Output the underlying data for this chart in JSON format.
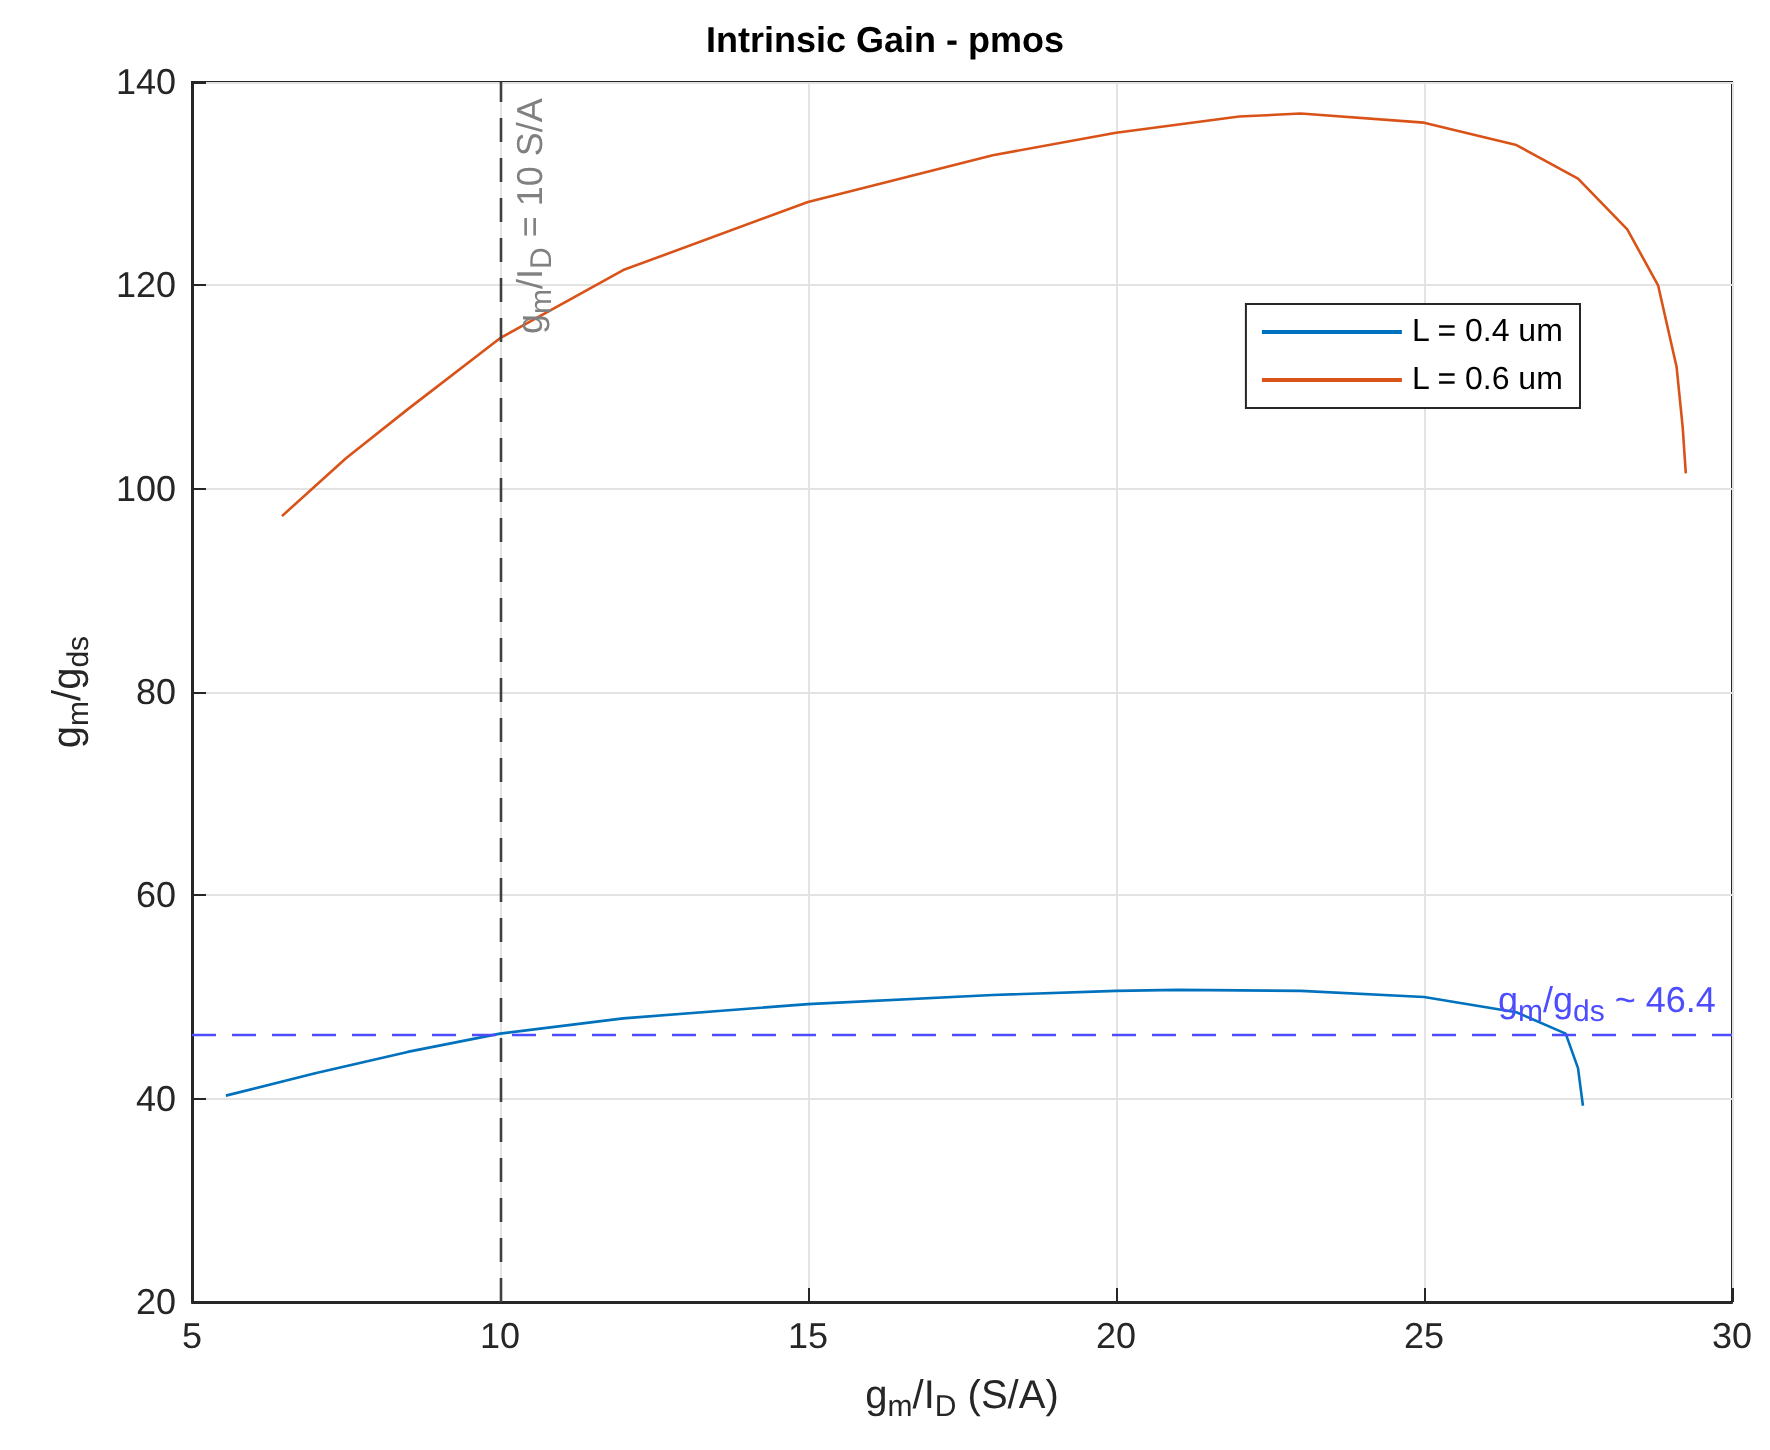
{
  "chart_data": {
    "type": "line",
    "title": "Intrinsic Gain - pmos",
    "xlabel": "g$_{m}$/I$_{D}$ (S/A)",
    "ylabel": "g$_{m}$/g$_{ds}$",
    "xlim": [
      5,
      30
    ],
    "xticks": [
      5,
      10,
      15,
      20,
      25,
      30
    ],
    "ylim": [
      20,
      140
    ],
    "yticks": [
      20,
      40,
      60,
      80,
      100,
      120,
      140
    ],
    "grid": true,
    "legend": "top right",
    "marker": "none",
    "line_style": "solid",
    "series": [
      {
        "name": "L = 0.4 um",
        "color": "#0072bd",
        "x": [
          5.55,
          7,
          8.5,
          10,
          12,
          15,
          18,
          20,
          21,
          23,
          25,
          26.5,
          27.3,
          27.5,
          27.58
        ],
        "values": [
          40.3,
          42.5,
          44.6,
          46.4,
          47.9,
          49.3,
          50.2,
          50.6,
          50.7,
          50.6,
          50.0,
          48.5,
          46.4,
          43.0,
          39.3
        ]
      },
      {
        "name": "L = 0.6 um",
        "color": "#d95319",
        "x": [
          6.46,
          7.5,
          8.5,
          10,
          12,
          15,
          18,
          20,
          22,
          23,
          25,
          26.5,
          27.5,
          28.3,
          28.8,
          29.1,
          29.2,
          29.25
        ],
        "values": [
          97.3,
          103.0,
          107.8,
          114.8,
          121.5,
          128.2,
          132.8,
          135.0,
          136.6,
          136.9,
          136.0,
          133.8,
          130.5,
          125.5,
          120.0,
          112.0,
          106.0,
          101.5
        ]
      }
    ],
    "ref_lines": [
      {
        "axis": "x",
        "value": 10,
        "label": "g$_{m}$/I$_{D}$ = 10 S/A",
        "color": "#404040",
        "line_style": "dashed"
      },
      {
        "axis": "y",
        "value": 46.4,
        "label": "g$_{m}$/g$_{ds}$ ~ 46.4",
        "color": "#4d4dff",
        "line_style": "dashed"
      }
    ]
  }
}
